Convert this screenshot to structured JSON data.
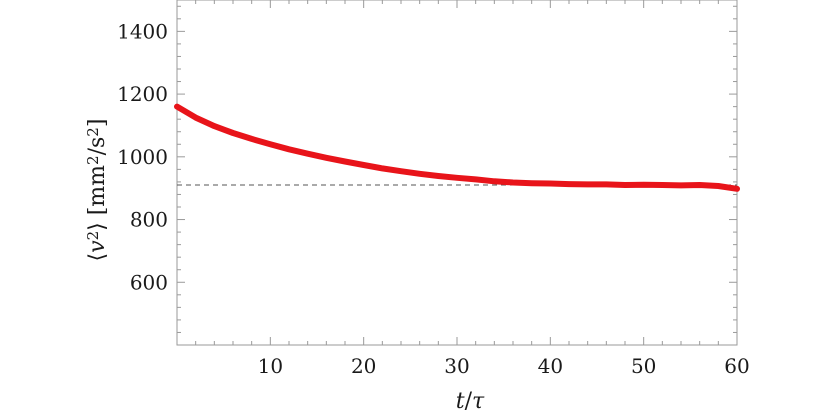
{
  "chart_data": {
    "type": "line",
    "title": "",
    "xlabel": "t/τ",
    "ylabel": "⟨v²⟩ [mm²/s²]",
    "xlim": [
      0,
      60
    ],
    "ylim": [
      400,
      1500
    ],
    "x_ticks": [
      10,
      20,
      30,
      40,
      50,
      60
    ],
    "y_ticks": [
      600,
      800,
      1000,
      1200,
      1400
    ],
    "x_tick_labels": [
      "10",
      "20",
      "30",
      "40",
      "50",
      "60"
    ],
    "y_tick_labels": [
      "600",
      "800",
      "1000",
      "1200",
      "1400"
    ],
    "grid": false,
    "legend": "none",
    "series": [
      {
        "color": "#e8141a",
        "x": [
          0,
          2,
          4,
          6,
          8,
          10,
          12,
          14,
          16,
          18,
          20,
          22,
          24,
          26,
          28,
          30,
          32,
          34,
          36,
          38,
          40,
          42,
          44,
          46,
          48,
          50,
          52,
          54,
          56,
          58,
          60
        ],
        "y": [
          1160,
          1125,
          1098,
          1076,
          1057,
          1040,
          1024,
          1010,
          997,
          985,
          974,
          963,
          954,
          946,
          939,
          933,
          928,
          922,
          918,
          916,
          915,
          913,
          912,
          912,
          910,
          911,
          910,
          909,
          910,
          907,
          898
        ]
      }
    ],
    "reference_line": {
      "y": 910,
      "style": "dashed",
      "color": "#555555"
    }
  }
}
